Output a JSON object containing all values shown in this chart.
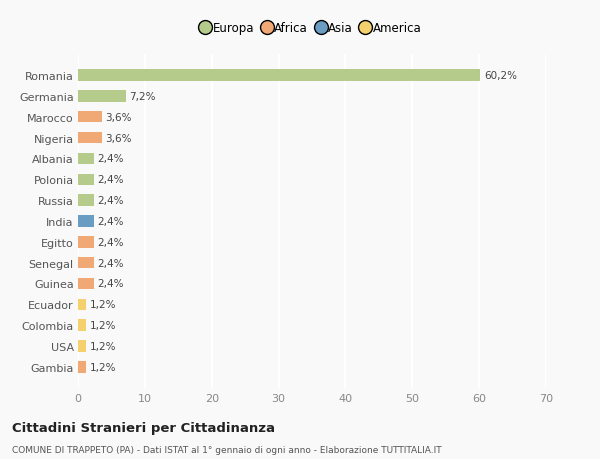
{
  "countries": [
    "Romania",
    "Germania",
    "Marocco",
    "Nigeria",
    "Albania",
    "Polonia",
    "Russia",
    "India",
    "Egitto",
    "Senegal",
    "Guinea",
    "Ecuador",
    "Colombia",
    "USA",
    "Gambia"
  ],
  "values": [
    60.2,
    7.2,
    3.6,
    3.6,
    2.4,
    2.4,
    2.4,
    2.4,
    2.4,
    2.4,
    2.4,
    1.2,
    1.2,
    1.2,
    1.2
  ],
  "labels": [
    "60,2%",
    "7,2%",
    "3,6%",
    "3,6%",
    "2,4%",
    "2,4%",
    "2,4%",
    "2,4%",
    "2,4%",
    "2,4%",
    "2,4%",
    "1,2%",
    "1,2%",
    "1,2%",
    "1,2%"
  ],
  "colors": [
    "#b5cb8b",
    "#b5cb8b",
    "#f0a875",
    "#f0a875",
    "#b5cb8b",
    "#b5cb8b",
    "#b5cb8b",
    "#6b9dc2",
    "#f0a875",
    "#f0a875",
    "#f0a875",
    "#f5d06e",
    "#f5d06e",
    "#f5d06e",
    "#f0a875"
  ],
  "legend_labels": [
    "Europa",
    "Africa",
    "Asia",
    "America"
  ],
  "legend_colors": [
    "#b5cb8b",
    "#f0a875",
    "#6b9dc2",
    "#f5d06e"
  ],
  "xlim": [
    0,
    70
  ],
  "xticks": [
    0,
    10,
    20,
    30,
    40,
    50,
    60,
    70
  ],
  "title": "Cittadini Stranieri per Cittadinanza",
  "subtitle": "COMUNE DI TRAPPETO (PA) - Dati ISTAT al 1° gennaio di ogni anno - Elaborazione TUTTITALIA.IT",
  "background_color": "#f9f9f9",
  "grid_color": "#ffffff",
  "bar_height": 0.55
}
